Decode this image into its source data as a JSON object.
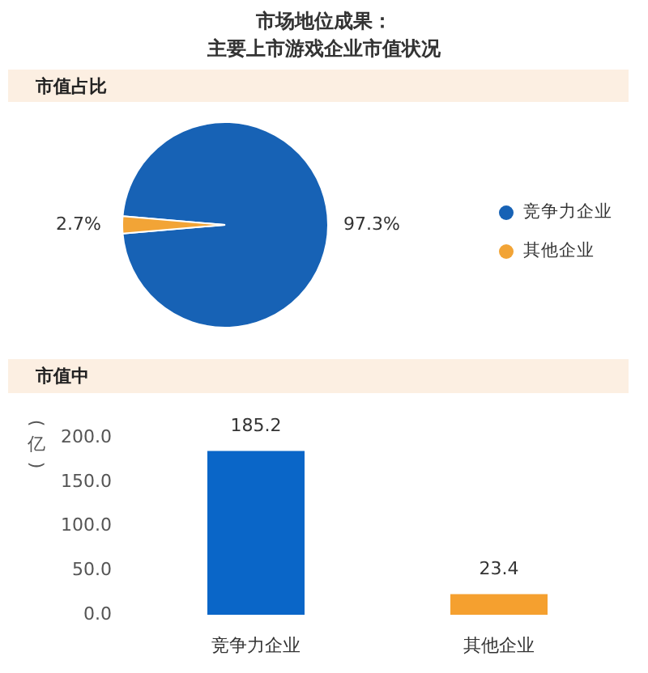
{
  "chart_data": [
    {
      "type": "pie",
      "title": "市场地位成果：",
      "subtitle": "主要上市游戏企业市值状况",
      "annotations": [
        "市值占比"
      ],
      "categories": [
        "竞争力企业",
        "其他企业"
      ],
      "values": [
        97.3,
        2.7
      ],
      "colors": [
        "#1762b5",
        "#f2a436"
      ],
      "value_labels": [
        "97.3%",
        "2.7%"
      ],
      "legend": "right"
    },
    {
      "type": "bar",
      "title": "市值中",
      "ylabel": "(亿)",
      "categories": [
        "竞争力企业",
        "其他企业"
      ],
      "values": [
        185.2,
        23.4
      ],
      "colors": [
        "#0a66c8",
        "#f5a02f"
      ],
      "ylim": [
        0,
        200
      ],
      "yticks": [
        {
          "value": 0,
          "label": "0.0"
        },
        {
          "value": 50,
          "label": "50.0"
        },
        {
          "value": 100,
          "label": "100.0"
        },
        {
          "value": 150,
          "label": "150.0"
        },
        {
          "value": 200,
          "label": "200.0"
        }
      ],
      "data_labels": true
    }
  ]
}
